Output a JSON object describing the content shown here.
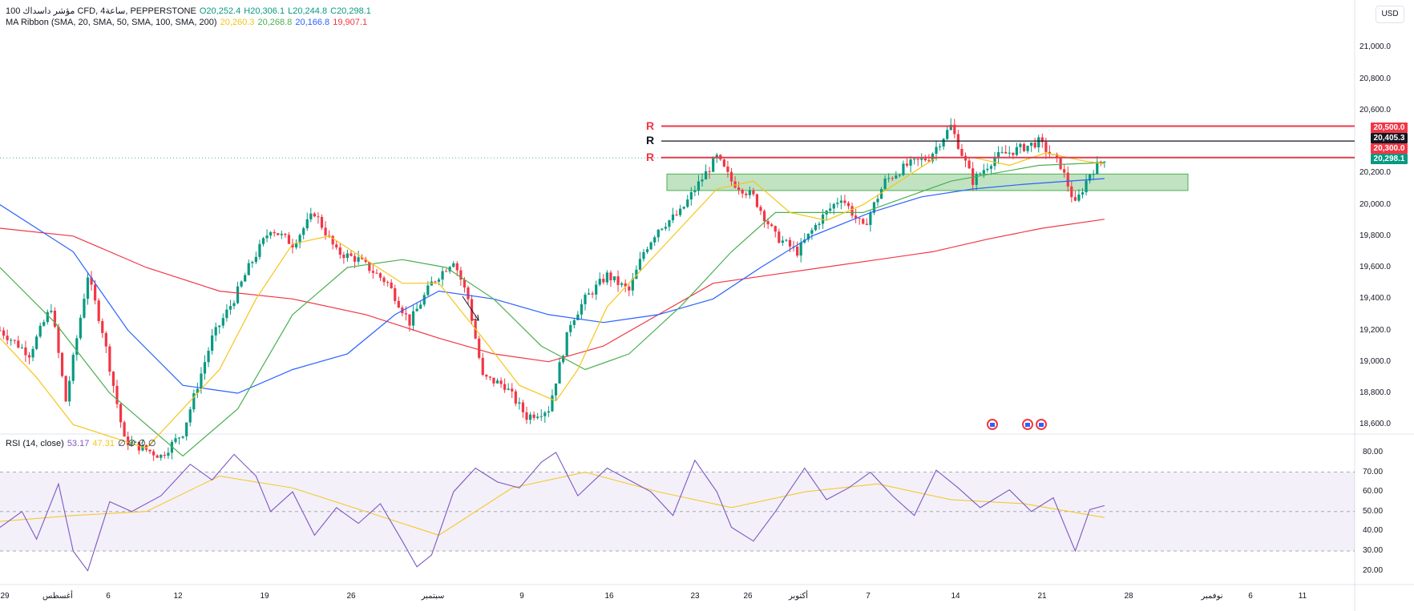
{
  "header": {
    "symbol": "100 مؤشر داسداك CFD, 4ساعة, PEPPERSTONE",
    "ohlc": {
      "o": "O20,252.4",
      "h": "H20,306.1",
      "l": "L20,244.8",
      "c": "C20,298.1"
    },
    "ma_label": "MA Ribbon (SMA, 20, SMA, 50, SMA, 100, SMA, 200)",
    "ma_values": [
      {
        "value": "20,260.3",
        "color": "#f5c518"
      },
      {
        "value": "20,268.8",
        "color": "#4caf50"
      },
      {
        "value": "20,166.8",
        "color": "#2962ff"
      },
      {
        "value": "19,907.1",
        "color": "#f23645"
      }
    ],
    "currency": "USD"
  },
  "rsi_header": {
    "label": "RSI (14, close)",
    "value": "53.17",
    "value_color": "#7e57c2",
    "ma_value": "47.31",
    "ma_color": "#f5c518",
    "extras": "∅ ∅ ∅ ∅"
  },
  "price_axis": [
    "21,000.0",
    "20,800.0",
    "20,600.0",
    "20,200.0",
    "20,000.0",
    "19,800.0",
    "19,600.0",
    "19,400.0",
    "19,200.0",
    "19,000.0",
    "18,800.0",
    "18,600.0"
  ],
  "price_tags": [
    {
      "text": "20,500.0",
      "color": "#f23645"
    },
    {
      "text": "20,405.3",
      "color": "#131722"
    },
    {
      "text": "20,300.0",
      "color": "#f23645"
    },
    {
      "text": "20,298.1",
      "color": "#089981"
    }
  ],
  "rsi_axis": [
    "80.00",
    "70.00",
    "60.00",
    "50.00",
    "40.00",
    "30.00",
    "20.00"
  ],
  "time_axis": [
    "29",
    "أغسطس",
    "6",
    "12",
    "19",
    "26",
    "سبتمبر",
    "9",
    "16",
    "23",
    "26",
    "أكتوبر",
    "7",
    "14",
    "21",
    "28",
    "نوفمبر",
    "6",
    "11"
  ],
  "levels": [
    {
      "label": "R",
      "color": "#f23645",
      "price": 20500
    },
    {
      "label": "R",
      "color": "#131722",
      "price": 20405
    },
    {
      "label": "R",
      "color": "#f23645",
      "price": 20300
    }
  ],
  "zone": {
    "top": 20195,
    "bottom": 20090,
    "color": "#4caf50"
  },
  "chart_data": {
    "type": "candlestick",
    "y_range": [
      18550,
      21150
    ],
    "rsi_range": [
      15,
      82
    ],
    "close_path": [
      [
        0,
        19200
      ],
      [
        8,
        19050
      ],
      [
        14,
        19350
      ],
      [
        18,
        18750
      ],
      [
        24,
        19550
      ],
      [
        28,
        19200
      ],
      [
        34,
        18500
      ],
      [
        44,
        18400
      ],
      [
        50,
        18550
      ],
      [
        58,
        19150
      ],
      [
        64,
        19400
      ],
      [
        68,
        19600
      ],
      [
        74,
        19850
      ],
      [
        80,
        19750
      ],
      [
        86,
        19950
      ],
      [
        92,
        19700
      ],
      [
        98,
        19650
      ],
      [
        106,
        19500
      ],
      [
        112,
        19250
      ],
      [
        118,
        19500
      ],
      [
        124,
        19650
      ],
      [
        128,
        19400
      ],
      [
        132,
        18900
      ],
      [
        138,
        18850
      ],
      [
        144,
        18650
      ],
      [
        150,
        18700
      ],
      [
        156,
        19250
      ],
      [
        160,
        19400
      ],
      [
        166,
        19550
      ],
      [
        172,
        19450
      ],
      [
        176,
        19700
      ],
      [
        180,
        19850
      ],
      [
        186,
        19950
      ],
      [
        190,
        20100
      ],
      [
        196,
        20300
      ],
      [
        200,
        20150
      ],
      [
        206,
        20050
      ],
      [
        212,
        19800
      ],
      [
        218,
        19700
      ],
      [
        224,
        19900
      ],
      [
        230,
        20050
      ],
      [
        236,
        19850
      ],
      [
        242,
        20150
      ],
      [
        248,
        20250
      ],
      [
        254,
        20300
      ],
      [
        260,
        20500
      ],
      [
        266,
        20150
      ],
      [
        272,
        20300
      ],
      [
        278,
        20350
      ],
      [
        284,
        20400
      ],
      [
        290,
        20250
      ],
      [
        294,
        20000
      ],
      [
        298,
        20200
      ],
      [
        302,
        20298
      ]
    ],
    "sma20": [
      [
        0,
        19150
      ],
      [
        10,
        18900
      ],
      [
        20,
        18600
      ],
      [
        40,
        18450
      ],
      [
        60,
        18950
      ],
      [
        70,
        19400
      ],
      [
        80,
        19750
      ],
      [
        90,
        19800
      ],
      [
        100,
        19650
      ],
      [
        110,
        19500
      ],
      [
        120,
        19500
      ],
      [
        132,
        19150
      ],
      [
        142,
        18850
      ],
      [
        152,
        18750
      ],
      [
        158,
        18950
      ],
      [
        166,
        19350
      ],
      [
        176,
        19600
      ],
      [
        186,
        19850
      ],
      [
        196,
        20100
      ],
      [
        206,
        20150
      ],
      [
        216,
        19950
      ],
      [
        226,
        19900
      ],
      [
        236,
        20000
      ],
      [
        246,
        20150
      ],
      [
        256,
        20300
      ],
      [
        266,
        20300
      ],
      [
        276,
        20250
      ],
      [
        286,
        20330
      ],
      [
        296,
        20280
      ],
      [
        302,
        20260
      ]
    ],
    "sma50": [
      [
        0,
        19600
      ],
      [
        15,
        19250
      ],
      [
        30,
        18800
      ],
      [
        50,
        18400
      ],
      [
        65,
        18700
      ],
      [
        80,
        19300
      ],
      [
        95,
        19600
      ],
      [
        110,
        19650
      ],
      [
        122,
        19600
      ],
      [
        135,
        19400
      ],
      [
        148,
        19100
      ],
      [
        160,
        18950
      ],
      [
        172,
        19050
      ],
      [
        186,
        19350
      ],
      [
        200,
        19700
      ],
      [
        212,
        19950
      ],
      [
        224,
        19950
      ],
      [
        236,
        19950
      ],
      [
        248,
        20050
      ],
      [
        260,
        20150
      ],
      [
        272,
        20200
      ],
      [
        284,
        20250
      ],
      [
        302,
        20268
      ]
    ],
    "sma100": [
      [
        0,
        20000
      ],
      [
        20,
        19700
      ],
      [
        35,
        19200
      ],
      [
        50,
        18850
      ],
      [
        65,
        18800
      ],
      [
        80,
        18950
      ],
      [
        95,
        19050
      ],
      [
        108,
        19300
      ],
      [
        120,
        19450
      ],
      [
        135,
        19400
      ],
      [
        150,
        19300
      ],
      [
        165,
        19250
      ],
      [
        180,
        19300
      ],
      [
        195,
        19400
      ],
      [
        208,
        19600
      ],
      [
        222,
        19800
      ],
      [
        238,
        19950
      ],
      [
        252,
        20050
      ],
      [
        266,
        20100
      ],
      [
        280,
        20130
      ],
      [
        302,
        20166
      ]
    ],
    "sma200": [
      [
        0,
        19850
      ],
      [
        20,
        19800
      ],
      [
        40,
        19600
      ],
      [
        60,
        19450
      ],
      [
        80,
        19400
      ],
      [
        100,
        19300
      ],
      [
        120,
        19150
      ],
      [
        135,
        19050
      ],
      [
        150,
        19000
      ],
      [
        165,
        19100
      ],
      [
        180,
        19300
      ],
      [
        195,
        19500
      ],
      [
        210,
        19550
      ],
      [
        225,
        19600
      ],
      [
        240,
        19650
      ],
      [
        255,
        19700
      ],
      [
        270,
        19780
      ],
      [
        285,
        19850
      ],
      [
        302,
        19907
      ]
    ],
    "rsi": [
      [
        0,
        42
      ],
      [
        6,
        50
      ],
      [
        10,
        36
      ],
      [
        16,
        64
      ],
      [
        20,
        30
      ],
      [
        24,
        20
      ],
      [
        30,
        55
      ],
      [
        36,
        50
      ],
      [
        44,
        58
      ],
      [
        52,
        74
      ],
      [
        58,
        66
      ],
      [
        64,
        79
      ],
      [
        70,
        68
      ],
      [
        74,
        50
      ],
      [
        80,
        60
      ],
      [
        86,
        38
      ],
      [
        92,
        52
      ],
      [
        98,
        44
      ],
      [
        104,
        54
      ],
      [
        110,
        35
      ],
      [
        114,
        22
      ],
      [
        118,
        28
      ],
      [
        124,
        60
      ],
      [
        130,
        72
      ],
      [
        136,
        65
      ],
      [
        142,
        62
      ],
      [
        148,
        75
      ],
      [
        152,
        80
      ],
      [
        158,
        58
      ],
      [
        166,
        72
      ],
      [
        172,
        66
      ],
      [
        178,
        60
      ],
      [
        184,
        48
      ],
      [
        190,
        76
      ],
      [
        196,
        60
      ],
      [
        200,
        42
      ],
      [
        206,
        35
      ],
      [
        212,
        50
      ],
      [
        220,
        72
      ],
      [
        226,
        56
      ],
      [
        232,
        62
      ],
      [
        238,
        70
      ],
      [
        244,
        58
      ],
      [
        250,
        48
      ],
      [
        256,
        71
      ],
      [
        262,
        62
      ],
      [
        268,
        52
      ],
      [
        276,
        61
      ],
      [
        282,
        50
      ],
      [
        288,
        57
      ],
      [
        294,
        30
      ],
      [
        298,
        51
      ],
      [
        302,
        53
      ]
    ],
    "rsi_ma": [
      [
        0,
        45
      ],
      [
        20,
        48
      ],
      [
        40,
        50
      ],
      [
        60,
        68
      ],
      [
        80,
        62
      ],
      [
        100,
        50
      ],
      [
        120,
        38
      ],
      [
        140,
        62
      ],
      [
        160,
        70
      ],
      [
        180,
        60
      ],
      [
        200,
        52
      ],
      [
        220,
        60
      ],
      [
        240,
        64
      ],
      [
        260,
        56
      ],
      [
        280,
        54
      ],
      [
        302,
        47
      ]
    ],
    "flags": [
      1238,
      1282,
      1299
    ]
  }
}
